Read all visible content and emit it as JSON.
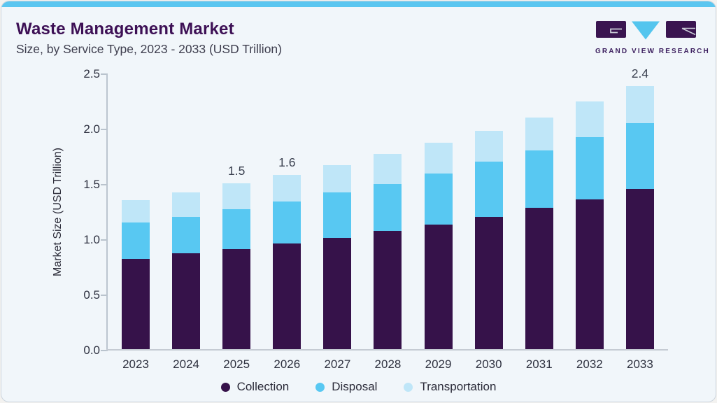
{
  "header": {
    "title": "Waste Management Market",
    "subtitle": "Size, by Service Type, 2023 - 2033 (USD Trillion)",
    "logo": {
      "name": "Grand View Research",
      "wordmark": "GRAND VIEW RESEARCH"
    }
  },
  "theme": {
    "accent_bar": "#5bc6f0",
    "card_background": "#f1f6fa",
    "title_color": "#3d1055",
    "logo_purple": "#3a1550",
    "logo_blue": "#54c5ee"
  },
  "chart_data": {
    "type": "bar",
    "stacked": true,
    "title": "Waste Management Market Size, by Service Type, 2023 - 2033 (USD Trillion)",
    "ylabel": "Market Size (USD Trillion)",
    "xlabel": "",
    "ylim": [
      0,
      2.5
    ],
    "yticks": [
      "0.0",
      "0.5",
      "1.0",
      "1.5",
      "2.0",
      "2.5"
    ],
    "grid": false,
    "legend_position": "bottom",
    "categories": [
      "2023",
      "2024",
      "2025",
      "2026",
      "2027",
      "2028",
      "2029",
      "2030",
      "2031",
      "2032",
      "2033"
    ],
    "series": [
      {
        "name": "Collection",
        "color": "#36124a",
        "values": [
          0.83,
          0.88,
          0.92,
          0.97,
          1.02,
          1.08,
          1.14,
          1.21,
          1.29,
          1.37,
          1.46
        ]
      },
      {
        "name": "Disposal",
        "color": "#58c8f2",
        "values": [
          0.33,
          0.33,
          0.36,
          0.38,
          0.41,
          0.43,
          0.46,
          0.5,
          0.52,
          0.56,
          0.6
        ]
      },
      {
        "name": "Transportation",
        "color": "#bfe6f8",
        "values": [
          0.2,
          0.22,
          0.23,
          0.24,
          0.25,
          0.27,
          0.28,
          0.28,
          0.3,
          0.32,
          0.33
        ]
      }
    ],
    "totals": [
      1.36,
      1.43,
      1.51,
      1.59,
      1.68,
      1.78,
      1.88,
      1.99,
      2.11,
      2.25,
      2.39
    ],
    "bar_value_labels": [
      "",
      "",
      "1.5",
      "1.6",
      "",
      "",
      "",
      "",
      "",
      "",
      "2.4"
    ]
  }
}
